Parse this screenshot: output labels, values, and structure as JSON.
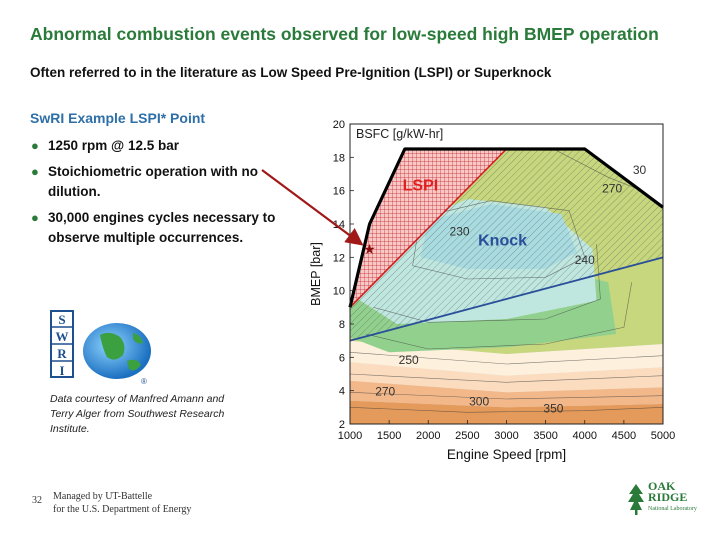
{
  "slide": {
    "title": "Abnormal combustion events observed for low-speed high BMEP operation",
    "subtitle": "Often referred to in the literature as Low Speed Pre-Ignition (LSPI) or Superknock",
    "section_heading": "SwRI Example LSPI* Point",
    "bullets": [
      "1250 rpm @ 12.5 bar",
      "Stoichiometric operation with no dilution.",
      "30,000 engines cycles necessary to observe multiple occurrences."
    ],
    "courtesy": "Data courtesy of Manfred Amann and Terry Alger from Southwest Research Institute.",
    "footer_page": "32",
    "footer_line1": "Managed by UT-Battelle",
    "footer_line2": "for the U.S. Department of Energy",
    "logo_swri_letters": [
      "S",
      "W",
      "R",
      "I"
    ],
    "logo_swri_registered": "®",
    "logo_ornl_line1": "OAK",
    "logo_ornl_line2": "RIDGE",
    "logo_ornl_line3": "National Laboratory",
    "colors": {
      "title_green": "#2a7a3a",
      "heading_blue": "#2e6fa8",
      "arrow_red": "#a01818"
    }
  },
  "chart_data": {
    "type": "contour",
    "title": "BSFC [g/kW-hr]",
    "xlabel": "Engine Speed [rpm]",
    "ylabel": "BMEP [bar]",
    "xlim": [
      1000,
      5000
    ],
    "ylim": [
      2,
      20
    ],
    "xticks": [
      1000,
      1500,
      2000,
      2500,
      3000,
      3500,
      4000,
      4500,
      5000
    ],
    "yticks": [
      2,
      4,
      6,
      8,
      10,
      12,
      14,
      16,
      18,
      20
    ],
    "max_torque_curve": [
      [
        1000,
        9
      ],
      [
        1250,
        14
      ],
      [
        1700,
        18.5
      ],
      [
        4000,
        18.5
      ],
      [
        5000,
        15
      ]
    ],
    "contour_labels": [
      {
        "text": "230",
        "x": 2400,
        "y": 13.3
      },
      {
        "text": "240",
        "x": 4000,
        "y": 11.6
      },
      {
        "text": "250",
        "x": 1750,
        "y": 5.6
      },
      {
        "text": "270",
        "x": 1450,
        "y": 3.7
      },
      {
        "text": "270",
        "x": 4350,
        "y": 15.9
      },
      {
        "text": "30",
        "x": 4700,
        "y": 17.0
      },
      {
        "text": "300",
        "x": 2650,
        "y": 3.1
      },
      {
        "text": "350",
        "x": 3600,
        "y": 2.7
      }
    ],
    "regions": [
      {
        "name": "LSPI",
        "color": "#e02020",
        "label_x": 1900,
        "label_y": 16.0,
        "boundary": [
          [
            1000,
            9
          ],
          [
            3000,
            18.5
          ],
          [
            1700,
            18.5
          ],
          [
            1250,
            14
          ]
        ]
      },
      {
        "name": "Knock",
        "color": "#2a4f9a",
        "label_x": 2950,
        "label_y": 12.7,
        "boundary": [
          [
            1000,
            7
          ],
          [
            5000,
            12
          ],
          [
            5000,
            15
          ],
          [
            4000,
            18.5
          ],
          [
            3000,
            18.5
          ],
          [
            1000,
            9
          ]
        ]
      }
    ],
    "lspi_point": {
      "x": 1250,
      "y": 12.5,
      "marker": "★"
    },
    "grid": false
  }
}
